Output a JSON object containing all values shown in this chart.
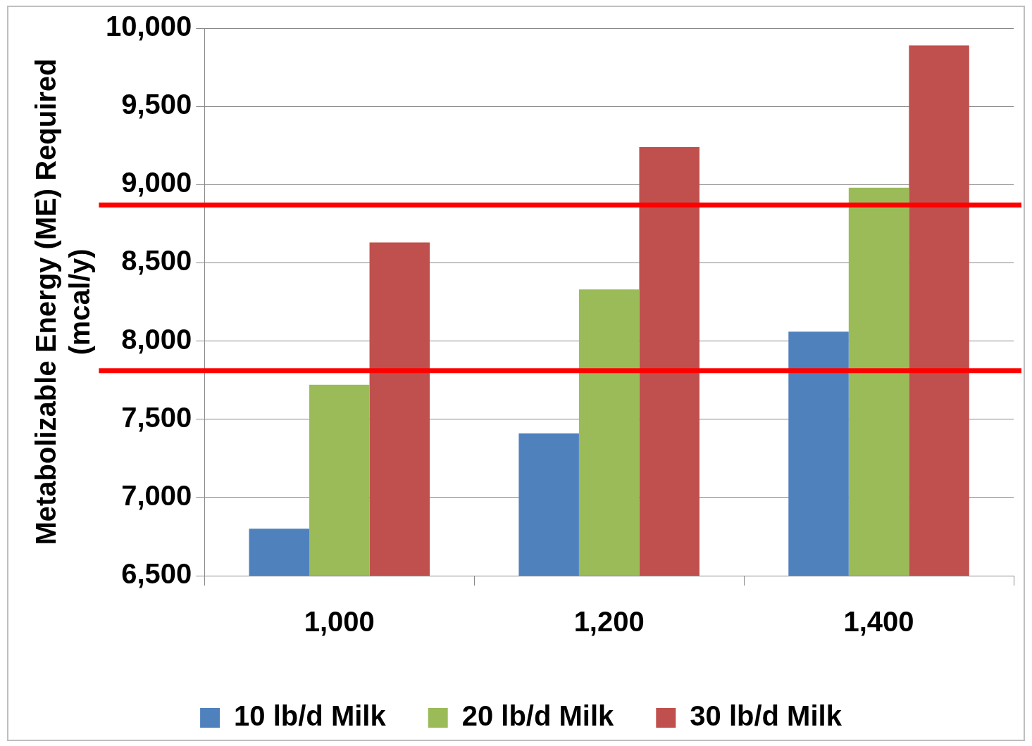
{
  "chart_data": {
    "type": "bar",
    "ylabel": "Metabolizable Energy (ME) Required\n(mcal/y)",
    "categories": [
      "1,000",
      "1,200",
      "1,400"
    ],
    "series": [
      {
        "name": "10 lb/d Milk",
        "color": "#4f81bd",
        "values": [
          6800,
          7410,
          8060
        ]
      },
      {
        "name": "20 lb/d Milk",
        "color": "#9bbb59",
        "values": [
          7720,
          8330,
          8980
        ]
      },
      {
        "name": "30 lb/d Milk",
        "color": "#c0504d",
        "values": [
          8630,
          9240,
          9890
        ]
      }
    ],
    "ylim": [
      6500,
      10000
    ],
    "yticks": [
      {
        "value": 6500,
        "label": "6,500"
      },
      {
        "value": 7000,
        "label": "7,000"
      },
      {
        "value": 7500,
        "label": "7,500"
      },
      {
        "value": 8000,
        "label": "8,000"
      },
      {
        "value": 8500,
        "label": "8,500"
      },
      {
        "value": 9000,
        "label": "9,000"
      },
      {
        "value": 9500,
        "label": "9,500"
      },
      {
        "value": 10000,
        "label": "10,000"
      }
    ],
    "ref_lines": [
      {
        "axis": "y",
        "value": 8870,
        "color": "#ff0000"
      },
      {
        "axis": "y",
        "value": 7810,
        "color": "#ff0000"
      }
    ],
    "grid": "y",
    "legend": "bottom"
  }
}
